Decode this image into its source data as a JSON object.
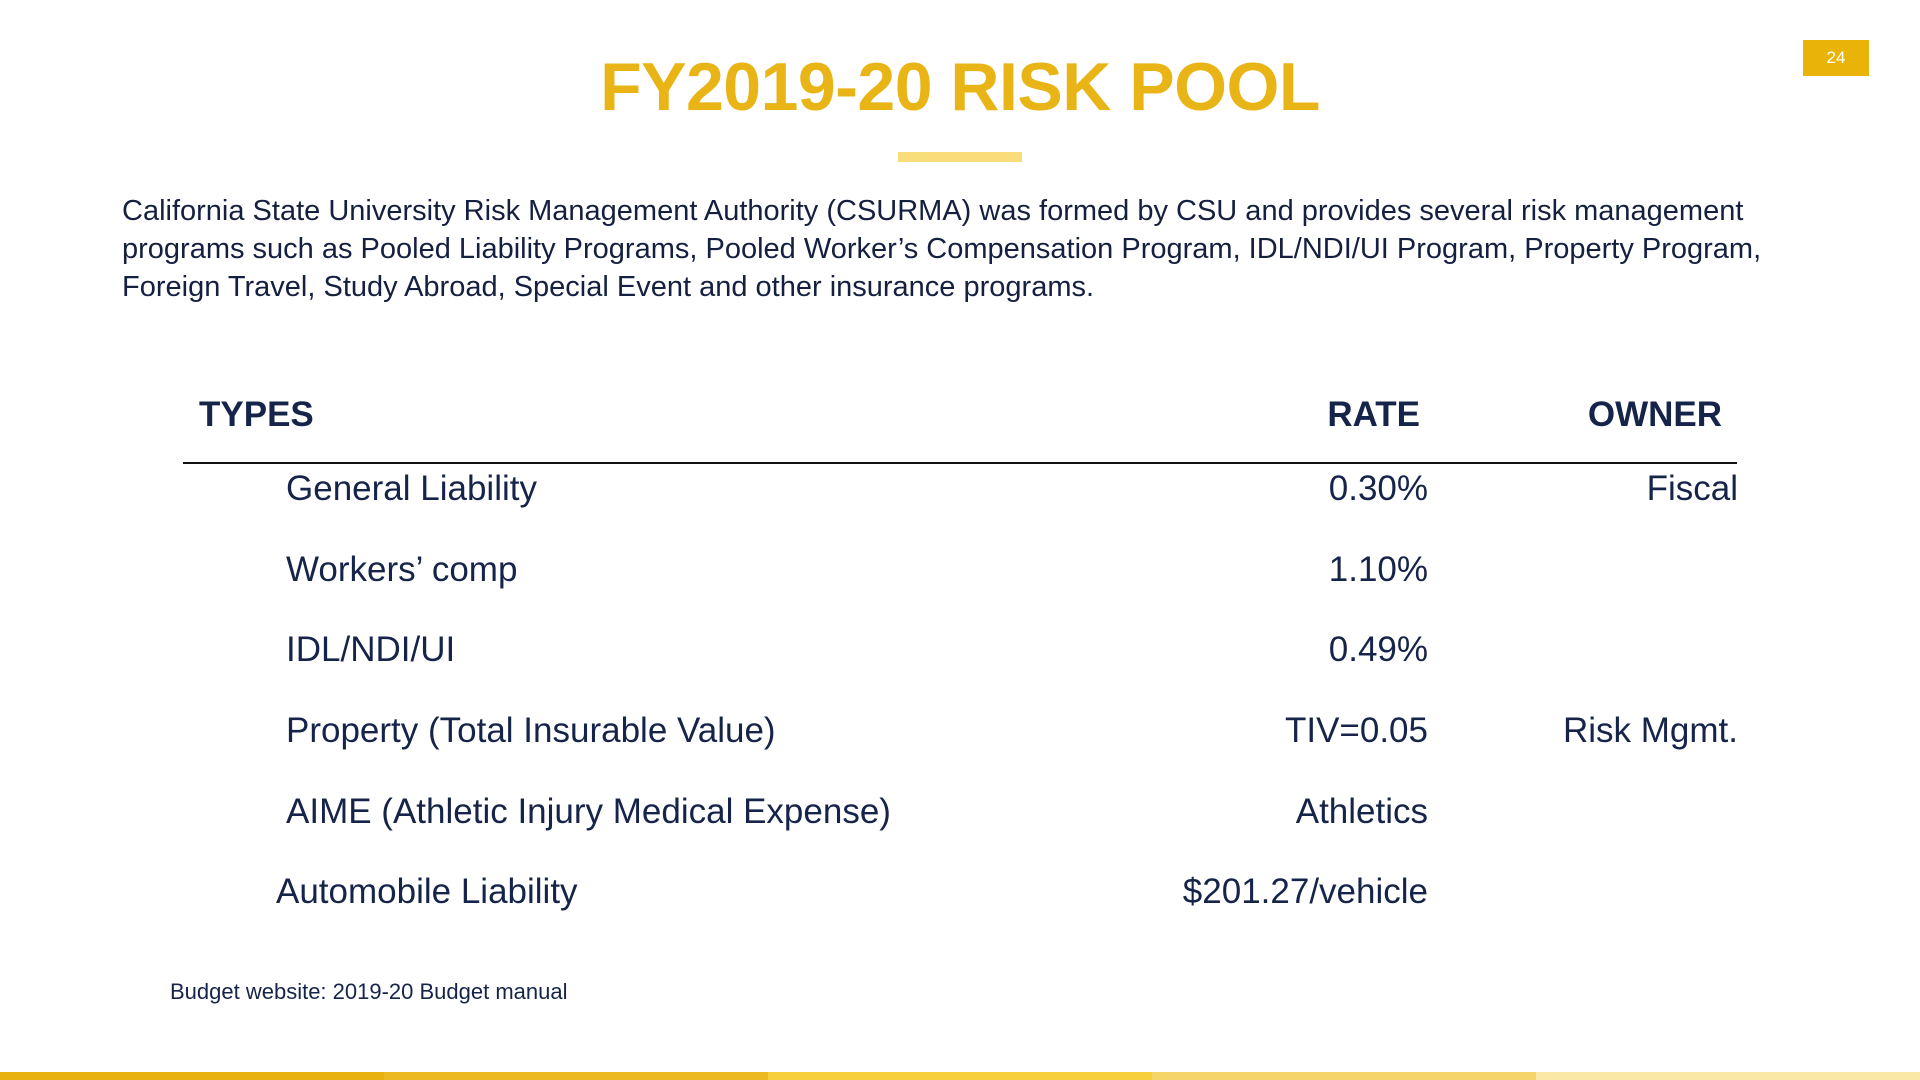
{
  "page_number": "24",
  "title": "FY2019-20 RISK POOL",
  "intro": "California State University Risk Management Authority (CSURMA) was formed by CSU and provides several risk management programs such as Pooled Liability Programs, Pooled Worker’s Compensation Program, IDL/NDI/UI Program, Property Program, Foreign Travel, Study Abroad, Special Event and other insurance programs.",
  "table": {
    "headers": {
      "types": "TYPES",
      "rate": "RATE",
      "owner": "OWNER"
    },
    "rows": [
      {
        "type": "General Liability",
        "rate": "0.30%",
        "owner": "Fiscal"
      },
      {
        "type": "Workers’ comp",
        "rate": "1.10%",
        "owner": ""
      },
      {
        "type": "IDL/NDI/UI",
        "rate": "0.49%",
        "owner": ""
      },
      {
        "type": "Property (Total Insurable Value)",
        "rate": "TIV=0.05",
        "owner": "Risk Mgmt."
      },
      {
        "type": "AIME (Athletic Injury Medical Expense)",
        "rate": "Athletics",
        "owner": ""
      },
      {
        "type": "Automobile Liability",
        "rate": "$201.27/vehicle",
        "owner": ""
      }
    ]
  },
  "footnote": "Budget website: 2019-20 Budget manual",
  "colors": {
    "accent": "#e8b416",
    "navy": "#16244a",
    "bar": [
      "#e9b10f",
      "#ecb922",
      "#f6cf3d",
      "#f5d46a",
      "#f9e8a6"
    ]
  }
}
